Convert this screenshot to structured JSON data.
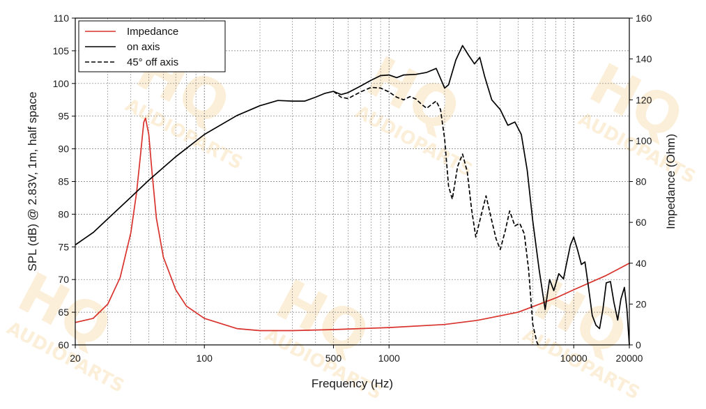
{
  "chart_data": {
    "type": "line",
    "xlabel": "Frequency (Hz)",
    "ylabel_left": "SPL (dB) @ 2.83V, 1m, half space",
    "ylabel_right": "Impedance (Ohm)",
    "x_scale": "log",
    "xlim": [
      20,
      20000
    ],
    "ylim_left": [
      60,
      110
    ],
    "ylim_right": [
      0,
      160
    ],
    "x_ticks": [
      {
        "value": 20,
        "label": "20"
      },
      {
        "value": 100,
        "label": "100"
      },
      {
        "value": 500,
        "label": "500"
      },
      {
        "value": 1000,
        "label": "1000"
      },
      {
        "value": 10000,
        "label": "10000"
      },
      {
        "value": 20000,
        "label": "20000"
      }
    ],
    "y_ticks_left": [
      "60",
      "65",
      "70",
      "75",
      "80",
      "85",
      "90",
      "95",
      "100",
      "105",
      "110"
    ],
    "y_ticks_right": [
      "0",
      "20",
      "40",
      "60",
      "80",
      "100",
      "120",
      "140",
      "160"
    ],
    "grid": true,
    "legend_position": "top-left",
    "watermark": "HQ AUDIOPARTS",
    "series": [
      {
        "name": "Impedance",
        "axis": "right",
        "color": "#d9312b",
        "dash": "solid",
        "points": [
          [
            20,
            11
          ],
          [
            25,
            13
          ],
          [
            30,
            20
          ],
          [
            35,
            33
          ],
          [
            40,
            55
          ],
          [
            43,
            75
          ],
          [
            45,
            92
          ],
          [
            47,
            109
          ],
          [
            48,
            111
          ],
          [
            50,
            103
          ],
          [
            52,
            85
          ],
          [
            55,
            62
          ],
          [
            60,
            43
          ],
          [
            70,
            27
          ],
          [
            80,
            19
          ],
          [
            100,
            13
          ],
          [
            150,
            8
          ],
          [
            200,
            7
          ],
          [
            300,
            7
          ],
          [
            500,
            7.5
          ],
          [
            1000,
            8.5
          ],
          [
            2000,
            10
          ],
          [
            3000,
            12
          ],
          [
            5000,
            16
          ],
          [
            8000,
            23
          ],
          [
            10000,
            27
          ],
          [
            15000,
            34
          ],
          [
            20000,
            40
          ]
        ]
      },
      {
        "name": "on axis",
        "axis": "left",
        "color": "#000000",
        "dash": "solid",
        "points": [
          [
            20,
            75.3
          ],
          [
            25,
            77.2
          ],
          [
            30,
            79.3
          ],
          [
            40,
            82.6
          ],
          [
            50,
            85.2
          ],
          [
            70,
            88.8
          ],
          [
            100,
            92.2
          ],
          [
            150,
            95.1
          ],
          [
            200,
            96.6
          ],
          [
            250,
            97.4
          ],
          [
            300,
            97.3
          ],
          [
            350,
            97.3
          ],
          [
            400,
            97.9
          ],
          [
            450,
            98.5
          ],
          [
            500,
            98.8
          ],
          [
            550,
            98.3
          ],
          [
            600,
            98.6
          ],
          [
            700,
            99.6
          ],
          [
            800,
            100.5
          ],
          [
            900,
            101.2
          ],
          [
            1000,
            101.3
          ],
          [
            1100,
            100.9
          ],
          [
            1200,
            101.3
          ],
          [
            1400,
            101.4
          ],
          [
            1600,
            101.7
          ],
          [
            1800,
            102.3
          ],
          [
            2000,
            99.3
          ],
          [
            2100,
            99.8
          ],
          [
            2300,
            103.6
          ],
          [
            2500,
            105.8
          ],
          [
            2700,
            104.3
          ],
          [
            2900,
            103.0
          ],
          [
            3100,
            104.0
          ],
          [
            3300,
            101.0
          ],
          [
            3600,
            97.5
          ],
          [
            4000,
            96.0
          ],
          [
            4400,
            93.6
          ],
          [
            4800,
            94.1
          ],
          [
            5200,
            92.2
          ],
          [
            5600,
            86.7
          ],
          [
            6000,
            79.0
          ],
          [
            6500,
            71.5
          ],
          [
            7000,
            65.4
          ],
          [
            7400,
            70.0
          ],
          [
            7800,
            68.3
          ],
          [
            8300,
            70.9
          ],
          [
            8800,
            70.1
          ],
          [
            9200,
            72.8
          ],
          [
            9600,
            75.3
          ],
          [
            10000,
            76.5
          ],
          [
            10500,
            74.5
          ],
          [
            11000,
            72.3
          ],
          [
            11500,
            72.7
          ],
          [
            12000,
            69.0
          ],
          [
            12600,
            64.5
          ],
          [
            13200,
            63.0
          ],
          [
            13800,
            62.5
          ],
          [
            14400,
            65.5
          ],
          [
            15000,
            69.5
          ],
          [
            15800,
            69.7
          ],
          [
            16500,
            66.5
          ],
          [
            17300,
            63.8
          ],
          [
            18000,
            67.0
          ],
          [
            18800,
            68.8
          ],
          [
            19400,
            65.5
          ],
          [
            20000,
            60.0
          ]
        ]
      },
      {
        "name": "45° off axis",
        "axis": "left",
        "color": "#000000",
        "dash": "dashed",
        "points": [
          [
            500,
            98.8
          ],
          [
            550,
            97.9
          ],
          [
            600,
            97.7
          ],
          [
            700,
            98.7
          ],
          [
            800,
            99.4
          ],
          [
            900,
            99.3
          ],
          [
            1000,
            98.7
          ],
          [
            1100,
            97.9
          ],
          [
            1200,
            97.5
          ],
          [
            1300,
            98.0
          ],
          [
            1400,
            97.6
          ],
          [
            1500,
            96.8
          ],
          [
            1600,
            96.2
          ],
          [
            1700,
            96.8
          ],
          [
            1800,
            97.3
          ],
          [
            1900,
            96.0
          ],
          [
            2000,
            91.5
          ],
          [
            2100,
            84.3
          ],
          [
            2200,
            82.3
          ],
          [
            2350,
            87.3
          ],
          [
            2500,
            89.2
          ],
          [
            2650,
            86.5
          ],
          [
            2800,
            80.7
          ],
          [
            2950,
            76.5
          ],
          [
            3150,
            79.8
          ],
          [
            3350,
            82.8
          ],
          [
            3600,
            79.0
          ],
          [
            3800,
            76.2
          ],
          [
            4000,
            74.6
          ],
          [
            4250,
            77.4
          ],
          [
            4500,
            80.5
          ],
          [
            4800,
            78.2
          ],
          [
            5100,
            78.6
          ],
          [
            5400,
            77.0
          ],
          [
            5700,
            71.5
          ],
          [
            6000,
            63.2
          ],
          [
            6300,
            60.5
          ],
          [
            6500,
            59.7
          ]
        ]
      }
    ]
  }
}
